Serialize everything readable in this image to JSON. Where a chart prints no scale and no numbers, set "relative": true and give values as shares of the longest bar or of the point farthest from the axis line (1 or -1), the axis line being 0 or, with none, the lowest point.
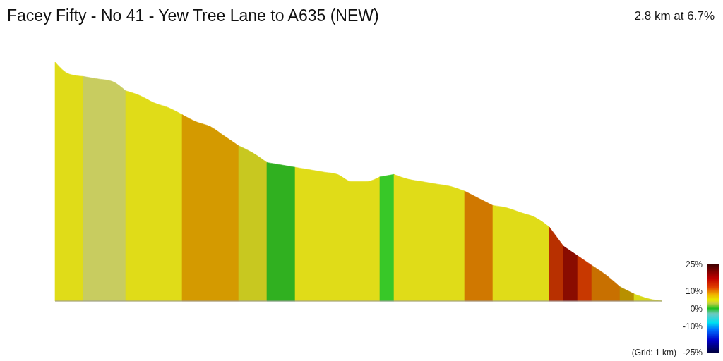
{
  "chart_data": {
    "type": "area",
    "title": "Facey Fifty - No 41 - Yew Tree Lane to A635 (NEW)",
    "subtitle": "2.8 km at 6.7%",
    "categories": [
      null,
      null,
      null,
      null,
      null,
      null,
      null,
      null,
      null,
      null,
      null,
      null,
      null,
      null,
      null,
      null,
      null,
      null,
      null,
      null,
      null,
      null,
      null,
      null,
      null,
      null,
      null,
      null,
      null,
      null,
      null,
      null,
      null,
      null,
      null,
      null,
      null,
      null,
      null,
      null,
      null,
      null,
      null,
      null
    ],
    "relative": true,
    "series": [
      {
        "color": "#e0dc18",
        "values": [
          1.0,
          0.95,
          0.94,
          null,
          null,
          null,
          null,
          null,
          null,
          null,
          null,
          null,
          null,
          null,
          null,
          null,
          null,
          null,
          null,
          null,
          null,
          null,
          null,
          null,
          null,
          null,
          null,
          null,
          null,
          null,
          null,
          null,
          null,
          null,
          null,
          null,
          null,
          null,
          null,
          null,
          null,
          null,
          null,
          null
        ]
      },
      {
        "color": "#c8cc60",
        "values": [
          null,
          null,
          0.94,
          0.93,
          0.92,
          0.88,
          null,
          null,
          null,
          null,
          null,
          null,
          null,
          null,
          null,
          null,
          null,
          null,
          null,
          null,
          null,
          null,
          null,
          null,
          null,
          null,
          null,
          null,
          null,
          null,
          null,
          null,
          null,
          null,
          null,
          null,
          null,
          null,
          null,
          null,
          null,
          null,
          null,
          null
        ]
      },
      {
        "color": "#e0dc18",
        "values": [
          null,
          null,
          null,
          null,
          null,
          0.88,
          0.86,
          0.83,
          0.81,
          0.78,
          null,
          null,
          null,
          null,
          null,
          null,
          null,
          null,
          null,
          null,
          null,
          null,
          null,
          null,
          null,
          null,
          null,
          null,
          null,
          null,
          null,
          null,
          null,
          null,
          null,
          null,
          null,
          null,
          null,
          null,
          null,
          null,
          null,
          null
        ]
      },
      {
        "color": "#d49a00",
        "values": [
          null,
          null,
          null,
          null,
          null,
          null,
          null,
          null,
          null,
          0.78,
          0.75,
          0.73,
          0.69,
          0.65,
          null,
          null,
          null,
          null,
          null,
          null,
          null,
          null,
          null,
          null,
          null,
          null,
          null,
          null,
          null,
          null,
          null,
          null,
          null,
          null,
          null,
          null,
          null,
          null,
          null,
          null,
          null,
          null,
          null,
          null
        ]
      },
      {
        "color": "#c8c820",
        "values": [
          null,
          null,
          null,
          null,
          null,
          null,
          null,
          null,
          null,
          null,
          null,
          null,
          null,
          0.65,
          0.62,
          0.58,
          null,
          null,
          null,
          null,
          null,
          null,
          null,
          null,
          null,
          null,
          null,
          null,
          null,
          null,
          null,
          null,
          null,
          null,
          null,
          null,
          null,
          null,
          null,
          null,
          null,
          null,
          null,
          null
        ]
      },
      {
        "color": "#30b020",
        "values": [
          null,
          null,
          null,
          null,
          null,
          null,
          null,
          null,
          null,
          null,
          null,
          null,
          null,
          null,
          null,
          0.58,
          0.57,
          0.56,
          null,
          null,
          null,
          null,
          null,
          null,
          null,
          null,
          null,
          null,
          null,
          null,
          null,
          null,
          null,
          null,
          null,
          null,
          null,
          null,
          null,
          null,
          null,
          null,
          null,
          null
        ]
      },
      {
        "color": "#e0dc18",
        "values": [
          null,
          null,
          null,
          null,
          null,
          null,
          null,
          null,
          null,
          null,
          null,
          null,
          null,
          null,
          null,
          null,
          null,
          0.56,
          0.55,
          0.54,
          0.53,
          0.5,
          0.5,
          0.52,
          null,
          null,
          null,
          null,
          null,
          null,
          null,
          null,
          null,
          null,
          null,
          null,
          null,
          null,
          null,
          null,
          null,
          null,
          null,
          null
        ]
      },
      {
        "color": "#38c828",
        "values": [
          null,
          null,
          null,
          null,
          null,
          null,
          null,
          null,
          null,
          null,
          null,
          null,
          null,
          null,
          null,
          null,
          null,
          null,
          null,
          null,
          null,
          null,
          null,
          0.52,
          0.53,
          null,
          null,
          null,
          null,
          null,
          null,
          null,
          null,
          null,
          null,
          null,
          null,
          null,
          null,
          null,
          null,
          null,
          null,
          null
        ]
      },
      {
        "color": "#e0dc18",
        "values": [
          null,
          null,
          null,
          null,
          null,
          null,
          null,
          null,
          null,
          null,
          null,
          null,
          null,
          null,
          null,
          null,
          null,
          null,
          null,
          null,
          null,
          null,
          null,
          null,
          0.53,
          0.51,
          0.5,
          0.49,
          0.48,
          0.46,
          null,
          null,
          null,
          null,
          null,
          null,
          null,
          null,
          null,
          null,
          null,
          null,
          null,
          null
        ]
      },
      {
        "color": "#d07800",
        "values": [
          null,
          null,
          null,
          null,
          null,
          null,
          null,
          null,
          null,
          null,
          null,
          null,
          null,
          null,
          null,
          null,
          null,
          null,
          null,
          null,
          null,
          null,
          null,
          null,
          null,
          null,
          null,
          null,
          null,
          0.46,
          0.43,
          0.4,
          null,
          null,
          null,
          null,
          null,
          null,
          null,
          null,
          null,
          null,
          null,
          null
        ]
      },
      {
        "color": "#e0dc18",
        "values": [
          null,
          null,
          null,
          null,
          null,
          null,
          null,
          null,
          null,
          null,
          null,
          null,
          null,
          null,
          null,
          null,
          null,
          null,
          null,
          null,
          null,
          null,
          null,
          null,
          null,
          null,
          null,
          null,
          null,
          null,
          null,
          0.4,
          0.39,
          0.37,
          0.35,
          0.31,
          null,
          null,
          null,
          null,
          null,
          null,
          null,
          null
        ]
      },
      {
        "color": "#b83000",
        "values": [
          null,
          null,
          null,
          null,
          null,
          null,
          null,
          null,
          null,
          null,
          null,
          null,
          null,
          null,
          null,
          null,
          null,
          null,
          null,
          null,
          null,
          null,
          null,
          null,
          null,
          null,
          null,
          null,
          null,
          null,
          null,
          null,
          null,
          null,
          null,
          0.31,
          0.23,
          null,
          null,
          null,
          null,
          null,
          null,
          null
        ]
      },
      {
        "color": "#8a0c00",
        "values": [
          null,
          null,
          null,
          null,
          null,
          null,
          null,
          null,
          null,
          null,
          null,
          null,
          null,
          null,
          null,
          null,
          null,
          null,
          null,
          null,
          null,
          null,
          null,
          null,
          null,
          null,
          null,
          null,
          null,
          null,
          null,
          null,
          null,
          null,
          null,
          null,
          0.23,
          0.19,
          null,
          null,
          null,
          null,
          null,
          null
        ]
      },
      {
        "color": "#c83800",
        "values": [
          null,
          null,
          null,
          null,
          null,
          null,
          null,
          null,
          null,
          null,
          null,
          null,
          null,
          null,
          null,
          null,
          null,
          null,
          null,
          null,
          null,
          null,
          null,
          null,
          null,
          null,
          null,
          null,
          null,
          null,
          null,
          null,
          null,
          null,
          null,
          null,
          null,
          0.19,
          0.15,
          null,
          null,
          null,
          null,
          null
        ]
      },
      {
        "color": "#c87000",
        "values": [
          null,
          null,
          null,
          null,
          null,
          null,
          null,
          null,
          null,
          null,
          null,
          null,
          null,
          null,
          null,
          null,
          null,
          null,
          null,
          null,
          null,
          null,
          null,
          null,
          null,
          null,
          null,
          null,
          null,
          null,
          null,
          null,
          null,
          null,
          null,
          null,
          null,
          null,
          0.15,
          0.11,
          0.06,
          null,
          null,
          null
        ]
      },
      {
        "color": "#b89000",
        "values": [
          null,
          null,
          null,
          null,
          null,
          null,
          null,
          null,
          null,
          null,
          null,
          null,
          null,
          null,
          null,
          null,
          null,
          null,
          null,
          null,
          null,
          null,
          null,
          null,
          null,
          null,
          null,
          null,
          null,
          null,
          null,
          null,
          null,
          null,
          null,
          null,
          null,
          null,
          null,
          null,
          0.06,
          0.03,
          null,
          null
        ]
      },
      {
        "color": "#d8d818",
        "values": [
          null,
          null,
          null,
          null,
          null,
          null,
          null,
          null,
          null,
          null,
          null,
          null,
          null,
          null,
          null,
          null,
          null,
          null,
          null,
          null,
          null,
          null,
          null,
          null,
          null,
          null,
          null,
          null,
          null,
          null,
          null,
          null,
          null,
          null,
          null,
          null,
          null,
          null,
          null,
          null,
          null,
          0.03,
          0.01,
          0
        ]
      }
    ],
    "annotations": [
      "25%",
      "10%",
      "0%",
      "-10%",
      "(Grid: 1 km)",
      "-25%"
    ]
  }
}
